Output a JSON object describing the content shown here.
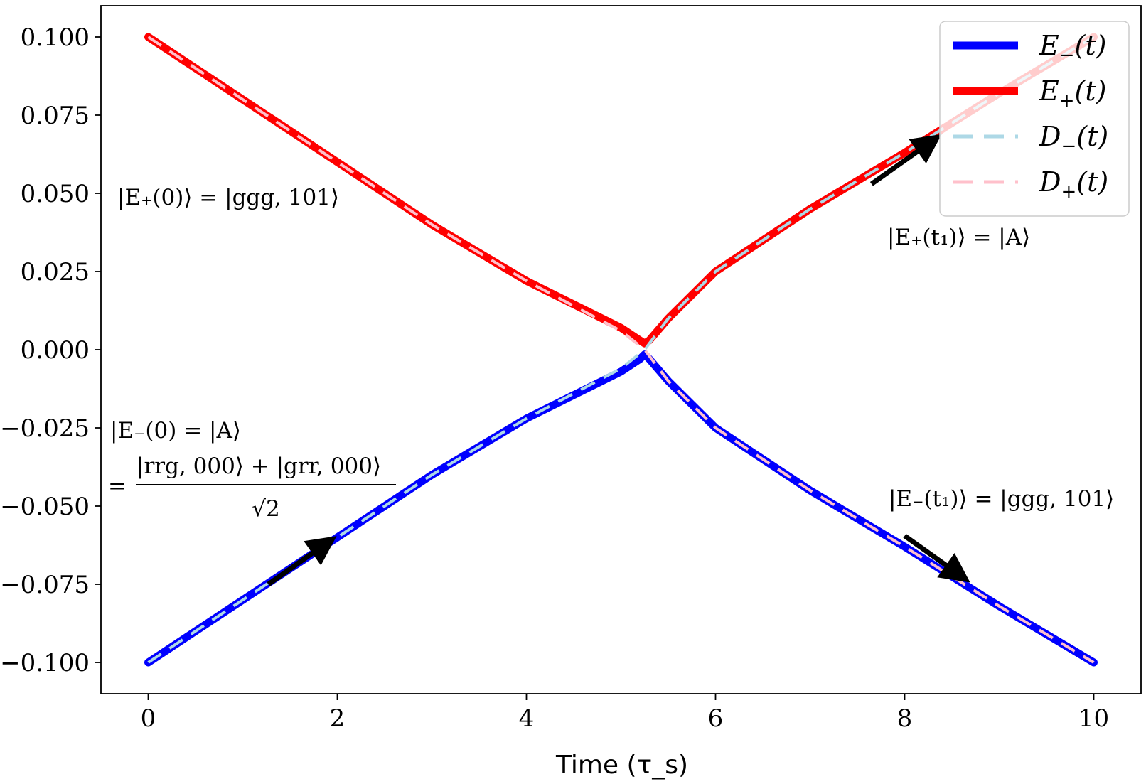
{
  "chart_data": {
    "type": "line",
    "xlabel": "Time (τ_s)",
    "ylabel": "",
    "xlim": [
      -0.5,
      10.5
    ],
    "ylim": [
      -0.11,
      0.11
    ],
    "x_ticks": [
      0,
      2,
      4,
      6,
      8,
      10
    ],
    "x_tick_labels": [
      "0",
      "2",
      "4",
      "6",
      "8",
      "10"
    ],
    "y_ticks": [
      0.1,
      0.075,
      0.05,
      0.025,
      0.0,
      -0.025,
      -0.05,
      -0.075,
      -0.1
    ],
    "y_tick_labels": [
      "0.100",
      "0.075",
      "0.050",
      "0.025",
      "0.000",
      "−0.025",
      "−0.050",
      "−0.075",
      "−0.100"
    ],
    "series": [
      {
        "name": "E−(t)",
        "color": "#0000ff",
        "style": "solid",
        "x": [
          0,
          1,
          2,
          3,
          4,
          5,
          5.2,
          5.25,
          5.3,
          5.5,
          6,
          7,
          8,
          9,
          10
        ],
        "y": [
          -0.1,
          -0.08,
          -0.06,
          -0.04,
          -0.022,
          -0.007,
          -0.003,
          -0.0015,
          -0.003,
          -0.01,
          -0.025,
          -0.045,
          -0.063,
          -0.082,
          -0.1
        ]
      },
      {
        "name": "E+(t)",
        "color": "#ff0000",
        "style": "solid",
        "x": [
          0,
          1,
          2,
          3,
          4,
          5,
          5.2,
          5.25,
          5.3,
          5.5,
          6,
          7,
          8,
          9,
          10
        ],
        "y": [
          0.1,
          0.08,
          0.06,
          0.04,
          0.022,
          0.007,
          0.003,
          0.002,
          0.003,
          0.01,
          0.025,
          0.045,
          0.063,
          0.082,
          0.1
        ]
      },
      {
        "name": "D−(t)",
        "color": "#add8e6",
        "style": "dashed",
        "x": [
          0,
          1,
          2,
          3,
          4,
          5,
          5.25,
          5.5,
          6,
          7,
          8,
          9,
          10
        ],
        "y": [
          -0.1,
          -0.08,
          -0.06,
          -0.04,
          -0.022,
          -0.006,
          0.0,
          0.01,
          0.025,
          0.045,
          0.063,
          0.082,
          0.1
        ]
      },
      {
        "name": "D+(t)",
        "color": "#ffc0cb",
        "style": "dashed",
        "x": [
          0,
          1,
          2,
          3,
          4,
          5,
          5.25,
          5.5,
          6,
          7,
          8,
          9,
          10
        ],
        "y": [
          0.1,
          0.08,
          0.06,
          0.04,
          0.022,
          0.006,
          0.0,
          -0.01,
          -0.025,
          -0.045,
          -0.063,
          -0.082,
          -0.1
        ]
      }
    ],
    "legend": {
      "position": "top-right",
      "entries": [
        {
          "base": "E",
          "sub": "−",
          "arg": "(t)",
          "color": "#0000ff",
          "style": "solid"
        },
        {
          "base": "E",
          "sub": "+",
          "arg": "(t)",
          "color": "#ff0000",
          "style": "solid"
        },
        {
          "base": "D",
          "sub": "−",
          "arg": "(t)",
          "color": "#add8e6",
          "style": "dashed"
        },
        {
          "base": "D",
          "sub": "+",
          "arg": "(t)",
          "color": "#ffc0cb",
          "style": "dashed"
        }
      ]
    },
    "arrows": [
      {
        "from": [
          1.27,
          -0.075
        ],
        "to": [
          1.95,
          -0.0605
        ]
      },
      {
        "from": [
          7.65,
          0.053
        ],
        "to": [
          8.35,
          0.068
        ]
      },
      {
        "from": [
          8.0,
          -0.0595
        ],
        "to": [
          8.65,
          -0.0735
        ]
      }
    ],
    "annotations": [
      {
        "id": "e-plus-0",
        "text": "|E₊(0)⟩ = |ggg, 101⟩"
      },
      {
        "id": "e-plus-t1",
        "text": "|E₊(t₁)⟩ = |A⟩"
      },
      {
        "id": "e-minus-0-line1",
        "text": "|E₋(0) = |A⟩"
      },
      {
        "id": "e-minus-0-numerator",
        "text": "|rrg, 000⟩ + |grr, 000⟩"
      },
      {
        "id": "e-minus-0-eq",
        "text": "="
      },
      {
        "id": "e-minus-0-denominator",
        "text": "√2"
      },
      {
        "id": "e-minus-t1",
        "text": "|E₋(t₁)⟩ = |ggg, 101⟩"
      }
    ]
  }
}
